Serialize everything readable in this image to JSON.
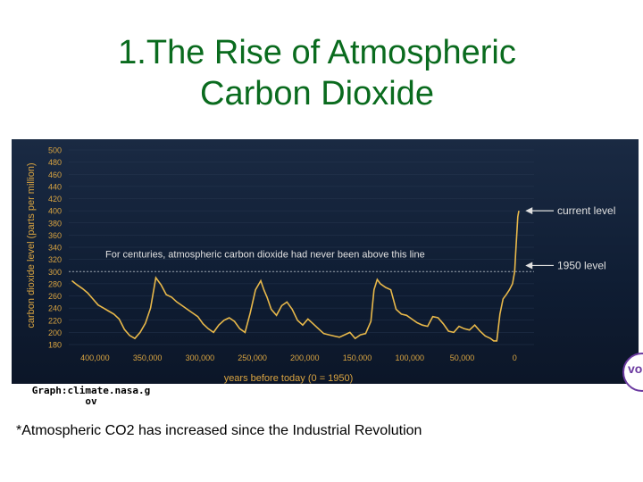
{
  "slide": {
    "title_line1": "1.The Rise of Atmospheric",
    "title_line2": "Carbon Dioxide",
    "source_line1": "Graph:climate.nasa.g",
    "source_line2": "ov",
    "caption": "*Atmospheric CO2 has increased since the Industrial Revolution"
  },
  "colors": {
    "title": "#0a6b1e",
    "line": "#e8b84a",
    "axis_text": "#d9a441",
    "annotation_text": "#e0e0e0",
    "background": "#13223a"
  },
  "chart_data": {
    "type": "line",
    "title": "",
    "ylabel": "carbon dioxide level (parts per million)",
    "xlabel": "years before today (0 = 1950)",
    "ylim": [
      180,
      500
    ],
    "xlim": [
      425000,
      -10000
    ],
    "yticks": [
      500,
      480,
      460,
      440,
      420,
      400,
      380,
      360,
      340,
      320,
      300,
      280,
      260,
      240,
      220,
      200,
      180
    ],
    "xticks": [
      {
        "value": 400000,
        "label": "400,000"
      },
      {
        "value": 350000,
        "label": "350,000"
      },
      {
        "value": 300000,
        "label": "300,000"
      },
      {
        "value": 250000,
        "label": "250,000"
      },
      {
        "value": 200000,
        "label": "200,000"
      },
      {
        "value": 150000,
        "label": "150,000"
      },
      {
        "value": 100000,
        "label": "100,000"
      },
      {
        "value": 50000,
        "label": "50,000"
      },
      {
        "value": 0,
        "label": "0"
      }
    ],
    "series": [
      {
        "x": [
          422000,
          417000,
          412000,
          407000,
          402000,
          397000,
          392000,
          387000,
          382000,
          377000,
          372000,
          367000,
          362000,
          357000,
          352000,
          347000,
          342000,
          337000,
          332000,
          327000,
          322000,
          317000,
          312000,
          307000,
          302000,
          297000,
          292000,
          287000,
          282000,
          277000,
          272000,
          267000,
          262000,
          257000,
          252000,
          247000,
          242000,
          239000,
          236000,
          232000,
          227000,
          222000,
          217000,
          212000,
          207000,
          202000,
          197000,
          192000,
          187000,
          182000,
          177000,
          172000,
          167000,
          162000,
          157000,
          152000,
          147000,
          142000,
          137000,
          134000,
          131000,
          128000,
          123000,
          118000,
          113000,
          108000,
          103000,
          98000,
          93000,
          88000,
          83000,
          78000,
          73000,
          68000,
          63000,
          58000,
          53000,
          48000,
          43000,
          38000,
          33000,
          28000,
          23000,
          20000,
          17000,
          14000,
          11000,
          8000,
          5000,
          2000,
          0,
          -1000,
          -2000,
          -3000,
          -4000
        ],
        "y": [
          285,
          278,
          272,
          265,
          255,
          245,
          240,
          235,
          230,
          222,
          205,
          195,
          190,
          200,
          215,
          240,
          290,
          278,
          262,
          258,
          250,
          244,
          238,
          232,
          226,
          214,
          206,
          200,
          212,
          220,
          224,
          218,
          206,
          200,
          232,
          270,
          285,
          270,
          258,
          238,
          228,
          244,
          250,
          238,
          220,
          212,
          222,
          214,
          206,
          198,
          196,
          194,
          192,
          196,
          200,
          190,
          196,
          198,
          218,
          270,
          287,
          280,
          274,
          270,
          238,
          230,
          228,
          222,
          216,
          212,
          210,
          226,
          224,
          214,
          202,
          200,
          210,
          206,
          204,
          212,
          202,
          194,
          190,
          186,
          186,
          230,
          255,
          262,
          270,
          280,
          300,
          330,
          360,
          390,
          400
        ]
      }
    ],
    "annotations": [
      {
        "text": "For centuries, atmospheric carbon dioxide had never been above this line",
        "y": 300
      },
      {
        "text": "current level",
        "y": 400
      },
      {
        "text": "1950 level",
        "y": 310
      }
    ]
  }
}
